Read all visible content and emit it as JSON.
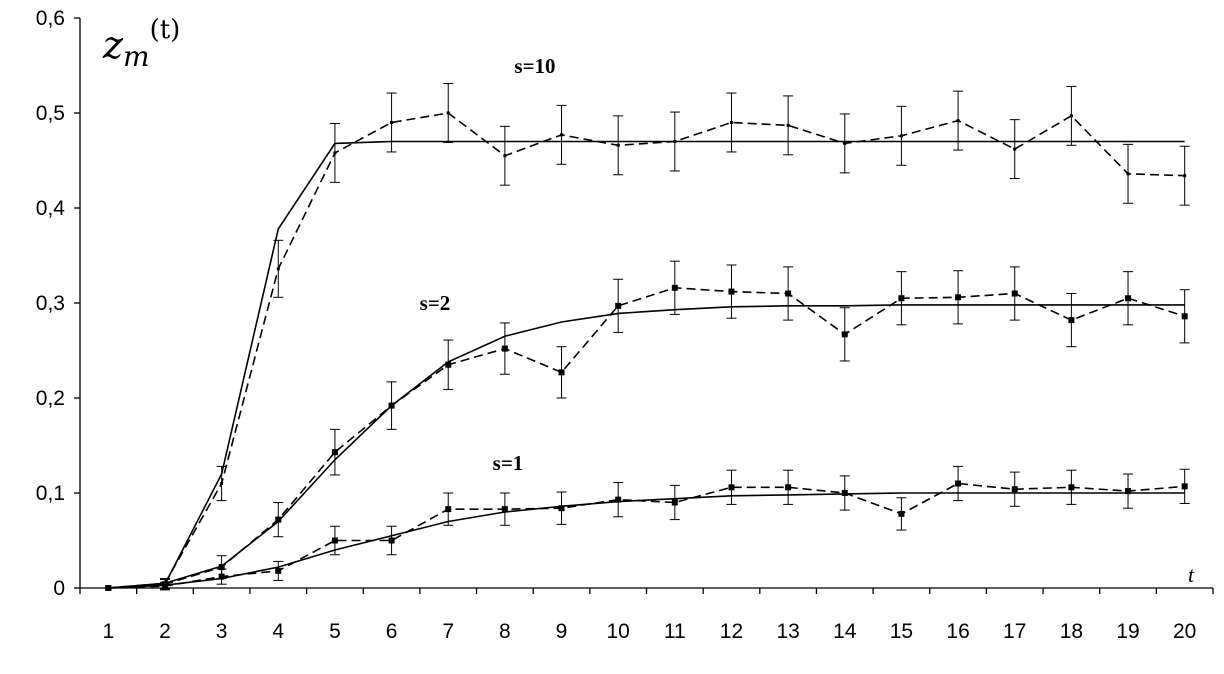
{
  "chart_data": {
    "type": "line",
    "title": "",
    "xlabel": "t",
    "ylabel": "z_m^(t)",
    "ylabel_main": "z",
    "ylabel_sub": "m",
    "ylabel_sup": "(t)",
    "x": [
      1,
      2,
      3,
      4,
      5,
      6,
      7,
      8,
      9,
      10,
      11,
      12,
      13,
      14,
      15,
      16,
      17,
      18,
      19,
      20
    ],
    "x_tick_labels": [
      "1",
      "2",
      "3",
      "4",
      "5",
      "6",
      "7",
      "8",
      "9",
      "10",
      "11",
      "12",
      "13",
      "14",
      "15",
      "16",
      "17",
      "18",
      "19",
      "20"
    ],
    "ylim": [
      0,
      0.6
    ],
    "y_ticks": [
      0,
      0.1,
      0.2,
      0.3,
      0.4,
      0.5,
      0.6
    ],
    "y_tick_labels": [
      "0",
      "0,1",
      "0,2",
      "0,3",
      "0,4",
      "0,5",
      "0,6"
    ],
    "grid": false,
    "series": [
      {
        "name": "s=10",
        "theory": [
          0,
          0.004,
          0.12,
          0.378,
          0.468,
          0.47,
          0.47,
          0.47,
          0.47,
          0.47,
          0.47,
          0.47,
          0.47,
          0.47,
          0.47,
          0.47,
          0.47,
          0.47,
          0.47,
          0.47
        ],
        "simulation": [
          0,
          0.005,
          0.11,
          0.336,
          0.458,
          0.49,
          0.5,
          0.455,
          0.477,
          0.466,
          0.47,
          0.49,
          0.487,
          0.468,
          0.476,
          0.492,
          0.462,
          0.497,
          0.436,
          0.434
        ],
        "error": [
          0,
          0.005,
          0.018,
          0.03,
          0.031,
          0.031,
          0.031,
          0.031,
          0.031,
          0.031,
          0.031,
          0.031,
          0.031,
          0.031,
          0.031,
          0.031,
          0.031,
          0.031,
          0.031,
          0.031
        ],
        "markers": false
      },
      {
        "name": "s=2",
        "theory": [
          0,
          0.005,
          0.023,
          0.07,
          0.135,
          0.192,
          0.238,
          0.265,
          0.28,
          0.289,
          0.293,
          0.296,
          0.297,
          0.297,
          0.298,
          0.298,
          0.298,
          0.298,
          0.298,
          0.298
        ],
        "simulation": [
          0,
          0.004,
          0.022,
          0.072,
          0.143,
          0.192,
          0.235,
          0.252,
          0.227,
          0.297,
          0.316,
          0.312,
          0.31,
          0.267,
          0.305,
          0.306,
          0.31,
          0.282,
          0.305,
          0.286
        ],
        "error": [
          0,
          0.005,
          0.012,
          0.018,
          0.024,
          0.025,
          0.026,
          0.027,
          0.027,
          0.028,
          0.028,
          0.028,
          0.028,
          0.028,
          0.028,
          0.028,
          0.028,
          0.028,
          0.028,
          0.028
        ],
        "markers": true
      },
      {
        "name": "s=1",
        "theory": [
          0,
          0.003,
          0.01,
          0.022,
          0.04,
          0.055,
          0.07,
          0.08,
          0.086,
          0.091,
          0.094,
          0.097,
          0.098,
          0.099,
          0.1,
          0.1,
          0.1,
          0.1,
          0.1,
          0.1
        ],
        "simulation": [
          0,
          0.002,
          0.012,
          0.018,
          0.05,
          0.05,
          0.083,
          0.083,
          0.084,
          0.093,
          0.09,
          0.106,
          0.106,
          0.1,
          0.078,
          0.11,
          0.104,
          0.106,
          0.102,
          0.107
        ],
        "error": [
          0,
          0.004,
          0.008,
          0.01,
          0.015,
          0.015,
          0.017,
          0.017,
          0.017,
          0.018,
          0.018,
          0.018,
          0.018,
          0.018,
          0.017,
          0.018,
          0.018,
          0.018,
          0.018,
          0.018
        ],
        "markers": true
      }
    ]
  }
}
